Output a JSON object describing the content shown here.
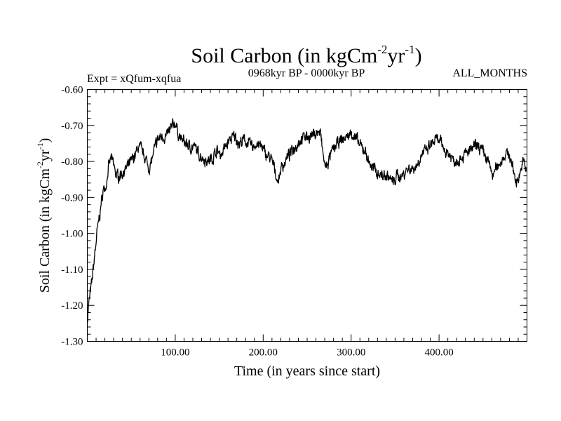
{
  "chart_data": {
    "type": "line",
    "title": "Soil Carbon (in kgCm",
    "title_exp1": "-2",
    "title_mid": "yr",
    "title_exp2": "-1",
    "title_end": ")",
    "subtitle_left": "Expt = xQfum-xqfua",
    "subtitle_center": "0968kyr BP - 0000kyr BP",
    "subtitle_right": "ALL_MONTHS",
    "xlabel": "Time (in years since start)",
    "ylabel": "Soil Carbon (in kgCm",
    "ylabel_exp1": "-2",
    "ylabel_mid": "yr",
    "ylabel_exp2": "-1",
    "ylabel_end": ")",
    "xlim": [
      0,
      500
    ],
    "ylim": [
      -1.3,
      -0.6
    ],
    "x_ticks": [
      {
        "value": 100,
        "label": "100.00"
      },
      {
        "value": 200,
        "label": "200.00"
      },
      {
        "value": 300,
        "label": "300.00"
      },
      {
        "value": 400,
        "label": "400.00"
      }
    ],
    "y_ticks": [
      {
        "value": -0.6,
        "label": "-0.60"
      },
      {
        "value": -0.7,
        "label": "-0.70"
      },
      {
        "value": -0.8,
        "label": "-0.80"
      },
      {
        "value": -0.9,
        "label": "-0.90"
      },
      {
        "value": -1.0,
        "label": "-1.00"
      },
      {
        "value": -1.1,
        "label": "-1.10"
      },
      {
        "value": -1.2,
        "label": "-1.20"
      },
      {
        "value": -1.3,
        "label": "-1.30"
      }
    ],
    "series": [
      {
        "name": "Soil Carbon",
        "color": "#000000",
        "anchors": [
          [
            0,
            -1.24
          ],
          [
            2,
            -1.19
          ],
          [
            5,
            -1.14
          ],
          [
            8,
            -1.07
          ],
          [
            11,
            -1.0
          ],
          [
            14,
            -0.95
          ],
          [
            18,
            -0.88
          ],
          [
            21,
            -0.87
          ],
          [
            24,
            -0.82
          ],
          [
            27,
            -0.79
          ],
          [
            30,
            -0.81
          ],
          [
            33,
            -0.84
          ],
          [
            36,
            -0.84
          ],
          [
            40,
            -0.83
          ],
          [
            45,
            -0.82
          ],
          [
            50,
            -0.8
          ],
          [
            55,
            -0.78
          ],
          [
            58,
            -0.76
          ],
          [
            62,
            -0.77
          ],
          [
            66,
            -0.79
          ],
          [
            70,
            -0.82
          ],
          [
            73,
            -0.8
          ],
          [
            76,
            -0.77
          ],
          [
            80,
            -0.74
          ],
          [
            85,
            -0.73
          ],
          [
            90,
            -0.73
          ],
          [
            95,
            -0.71
          ],
          [
            100,
            -0.69
          ],
          [
            103,
            -0.72
          ],
          [
            107,
            -0.74
          ],
          [
            112,
            -0.75
          ],
          [
            117,
            -0.76
          ],
          [
            122,
            -0.76
          ],
          [
            127,
            -0.78
          ],
          [
            132,
            -0.79
          ],
          [
            137,
            -0.8
          ],
          [
            142,
            -0.79
          ],
          [
            147,
            -0.77
          ],
          [
            152,
            -0.78
          ],
          [
            157,
            -0.76
          ],
          [
            162,
            -0.74
          ],
          [
            168,
            -0.73
          ],
          [
            173,
            -0.75
          ],
          [
            178,
            -0.74
          ],
          [
            183,
            -0.75
          ],
          [
            188,
            -0.76
          ],
          [
            193,
            -0.75
          ],
          [
            198,
            -0.76
          ],
          [
            203,
            -0.78
          ],
          [
            208,
            -0.79
          ],
          [
            213,
            -0.82
          ],
          [
            217,
            -0.86
          ],
          [
            220,
            -0.82
          ],
          [
            225,
            -0.8
          ],
          [
            230,
            -0.78
          ],
          [
            236,
            -0.76
          ],
          [
            242,
            -0.74
          ],
          [
            248,
            -0.73
          ],
          [
            254,
            -0.73
          ],
          [
            260,
            -0.72
          ],
          [
            265,
            -0.72
          ],
          [
            268,
            -0.78
          ],
          [
            271,
            -0.82
          ],
          [
            274,
            -0.8
          ],
          [
            279,
            -0.77
          ],
          [
            285,
            -0.75
          ],
          [
            290,
            -0.74
          ],
          [
            296,
            -0.73
          ],
          [
            301,
            -0.72
          ],
          [
            306,
            -0.74
          ],
          [
            311,
            -0.76
          ],
          [
            316,
            -0.77
          ],
          [
            320,
            -0.8
          ],
          [
            325,
            -0.82
          ],
          [
            330,
            -0.83
          ],
          [
            336,
            -0.84
          ],
          [
            342,
            -0.84
          ],
          [
            348,
            -0.86
          ],
          [
            352,
            -0.84
          ],
          [
            358,
            -0.84
          ],
          [
            364,
            -0.82
          ],
          [
            370,
            -0.82
          ],
          [
            375,
            -0.81
          ],
          [
            380,
            -0.78
          ],
          [
            386,
            -0.77
          ],
          [
            392,
            -0.75
          ],
          [
            397,
            -0.74
          ],
          [
            402,
            -0.75
          ],
          [
            407,
            -0.77
          ],
          [
            412,
            -0.78
          ],
          [
            418,
            -0.8
          ],
          [
            424,
            -0.79
          ],
          [
            430,
            -0.78
          ],
          [
            436,
            -0.77
          ],
          [
            441,
            -0.76
          ],
          [
            446,
            -0.76
          ],
          [
            451,
            -0.78
          ],
          [
            456,
            -0.8
          ],
          [
            461,
            -0.84
          ],
          [
            465,
            -0.82
          ],
          [
            470,
            -0.8
          ],
          [
            475,
            -0.78
          ],
          [
            480,
            -0.78
          ],
          [
            484,
            -0.82
          ],
          [
            488,
            -0.86
          ],
          [
            492,
            -0.83
          ],
          [
            496,
            -0.8
          ],
          [
            499,
            -0.82
          ]
        ]
      }
    ]
  }
}
